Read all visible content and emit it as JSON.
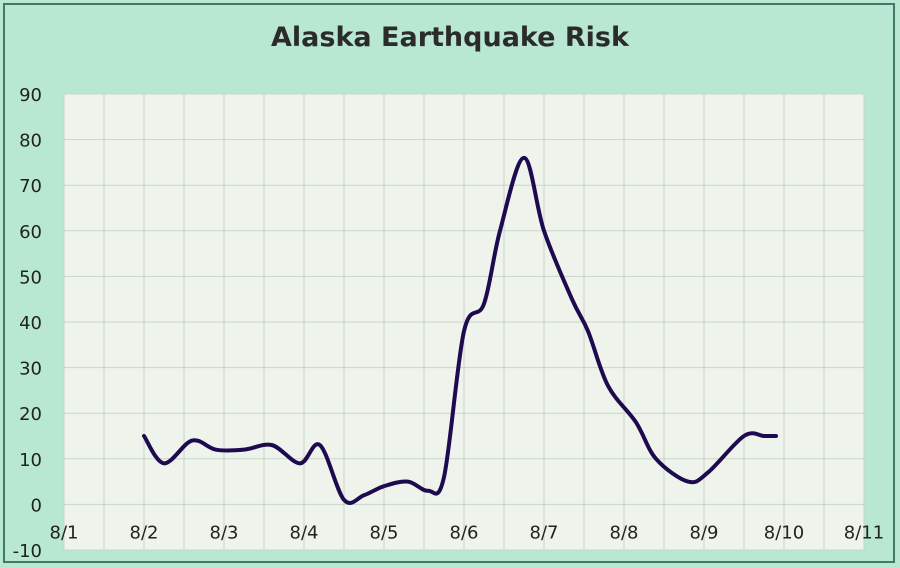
{
  "chart_data": {
    "type": "line",
    "title": "Alaska Earthquake Risk",
    "xlabel": "",
    "ylabel": "",
    "x_tick_labels": [
      "8/1",
      "8/2",
      "8/3",
      "8/4",
      "8/5",
      "8/6",
      "8/7",
      "8/8",
      "8/9",
      "8/10",
      "8/11"
    ],
    "y_tick_labels": [
      "-10",
      "0",
      "10",
      "20",
      "30",
      "40",
      "50",
      "60",
      "70",
      "80",
      "90"
    ],
    "xlim": [
      0,
      10
    ],
    "ylim": [
      -10,
      90
    ],
    "grid": true,
    "x_minor_per_major": 2,
    "series": [
      {
        "color": "#1e0a4f",
        "x": [
          1.0,
          1.25,
          1.6,
          1.9,
          2.25,
          2.6,
          2.95,
          3.2,
          3.5,
          3.75,
          4.0,
          4.3,
          4.55,
          4.75,
          5.0,
          5.25,
          5.45,
          5.75,
          6.0,
          6.35,
          6.55,
          6.8,
          7.15,
          7.4,
          7.8,
          8.05,
          8.5,
          8.75,
          8.9
        ],
        "y": [
          15,
          9,
          14,
          12,
          12,
          13,
          9,
          13,
          1,
          2,
          4,
          5,
          3,
          6,
          38,
          44,
          60,
          76,
          60,
          45,
          38,
          26,
          18,
          10,
          5,
          7,
          15,
          15,
          15
        ]
      }
    ]
  }
}
